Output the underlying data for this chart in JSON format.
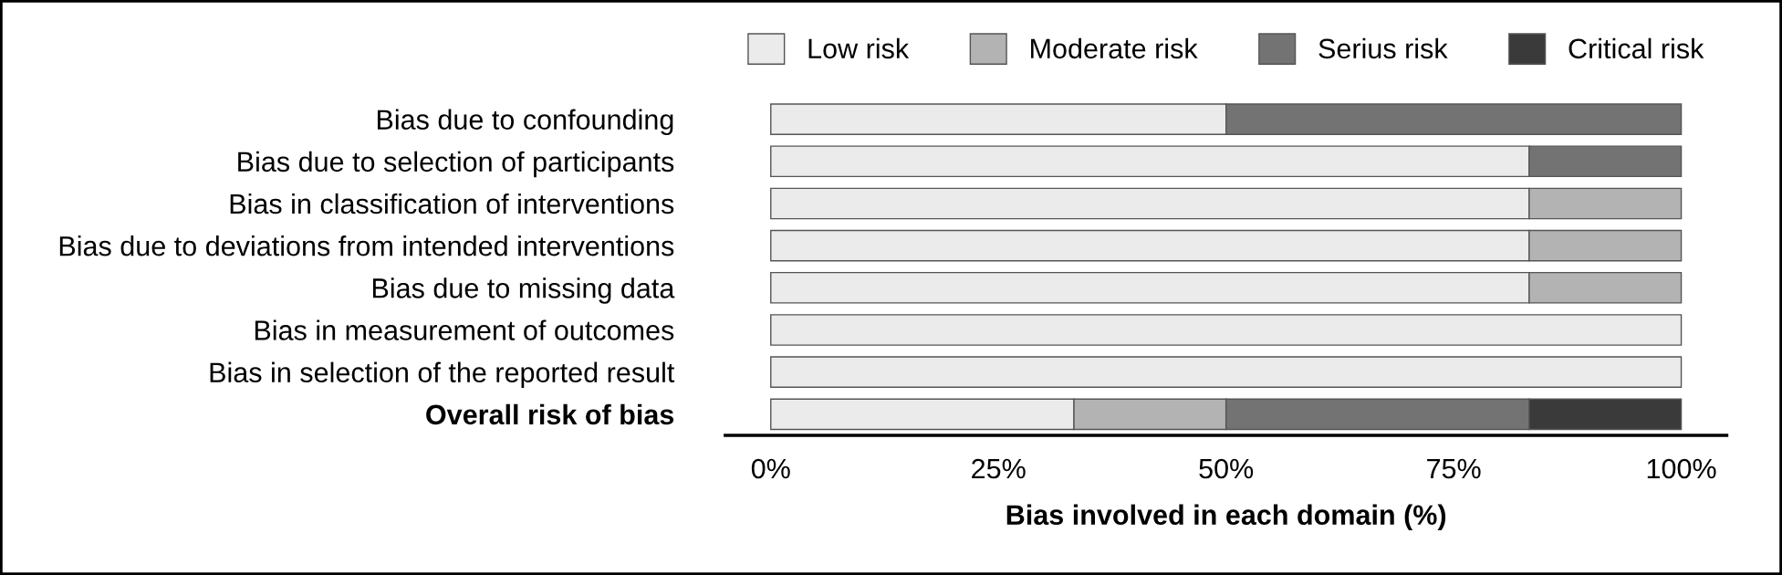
{
  "chart_data": {
    "type": "bar",
    "orientation": "horizontal",
    "stacked": true,
    "categories": [
      "Bias due to confounding",
      "Bias due to selection of participants",
      "Bias in classification of interventions",
      "Bias due to deviations from intended interventions",
      "Bias due to missing data",
      "Bias in measurement of outcomes",
      "Bias in selection of the reported result",
      "Overall risk of bias"
    ],
    "series": [
      {
        "name": "Low risk",
        "color": "#ebebeb",
        "values": [
          50,
          83.3,
          83.3,
          83.3,
          83.3,
          100,
          100,
          33.3
        ]
      },
      {
        "name": "Moderate risk",
        "color": "#b3b3b3",
        "values": [
          null,
          null,
          16.7,
          16.7,
          16.7,
          null,
          null,
          16.7
        ]
      },
      {
        "name": "Serius risk",
        "color": "#737373",
        "values": [
          50,
          16.7,
          null,
          null,
          null,
          null,
          null,
          33.3
        ]
      },
      {
        "name": "Critical risk",
        "color": "#3a3a3a",
        "values": [
          null,
          null,
          null,
          null,
          null,
          null,
          null,
          16.7
        ]
      }
    ],
    "xlabel": "Bias involved in each domain (%)",
    "xlim": [
      -5,
      105
    ],
    "xticks": [
      {
        "value": 0,
        "label": "0%"
      },
      {
        "value": 25,
        "label": "25%"
      },
      {
        "value": 50,
        "label": "50%"
      },
      {
        "value": 75,
        "label": "75%"
      },
      {
        "value": 100,
        "label": "100%"
      }
    ],
    "legend": "top"
  }
}
